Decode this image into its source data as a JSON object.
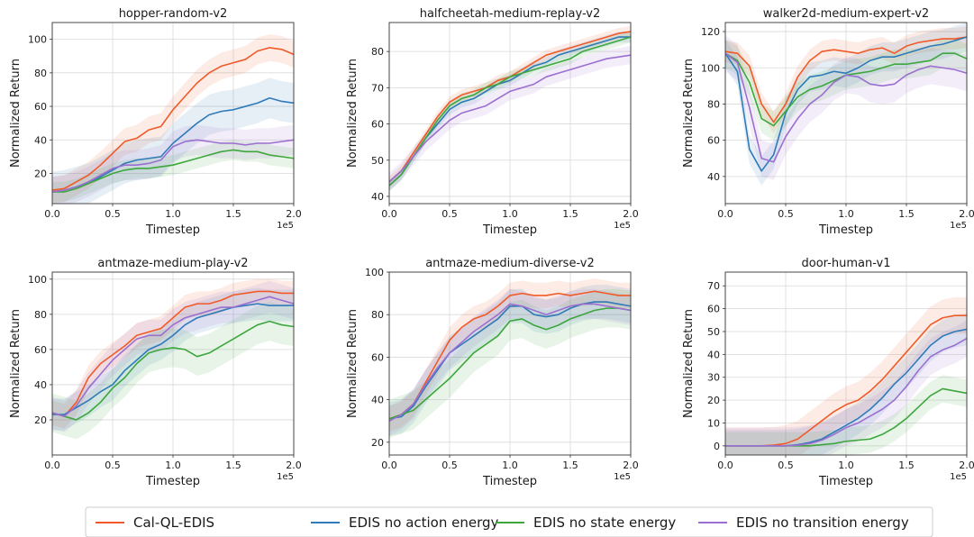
{
  "colors": {
    "Cal-QL-EDIS": "#f05a28",
    "EDIS no action energy": "#2f7ab8",
    "EDIS no state energy": "#3da63d",
    "EDIS no transition energy": "#9a6fd0"
  },
  "legend": {
    "items": [
      "Cal-QL-EDIS",
      "EDIS no action energy",
      "EDIS no state energy",
      "EDIS no transition energy"
    ]
  },
  "chart_data": [
    {
      "type": "line",
      "title": "hopper-random-v2",
      "xlabel": "Timestep",
      "ylabel": "Normalized Return",
      "x_exponent": "1e5",
      "xlim": [
        0,
        2.0
      ],
      "ylim": [
        2,
        110
      ],
      "xticks": [
        0.0,
        0.5,
        1.0,
        1.5,
        2.0
      ],
      "yticks": [
        20,
        40,
        60,
        80,
        100
      ],
      "grid": true,
      "x": [
        0.0,
        0.1,
        0.2,
        0.3,
        0.4,
        0.5,
        0.6,
        0.7,
        0.8,
        0.9,
        1.0,
        1.1,
        1.2,
        1.3,
        1.4,
        1.5,
        1.6,
        1.7,
        1.8,
        1.9,
        2.0
      ],
      "series": [
        {
          "name": "Cal-QL-EDIS",
          "values": [
            10,
            11,
            15,
            19,
            25,
            32,
            39,
            41,
            46,
            48,
            58,
            66,
            74,
            80,
            84,
            86,
            88,
            93,
            95,
            94,
            91
          ],
          "band": 8
        },
        {
          "name": "EDIS no action energy",
          "values": [
            9,
            10,
            12,
            14,
            18,
            22,
            26,
            28,
            29,
            30,
            38,
            44,
            50,
            55,
            57,
            58,
            60,
            62,
            65,
            63,
            62
          ],
          "band": 12
        },
        {
          "name": "EDIS no state energy",
          "values": [
            9,
            9,
            11,
            14,
            17,
            20,
            22,
            23,
            23,
            24,
            25,
            27,
            29,
            31,
            33,
            34,
            33,
            33,
            31,
            30,
            29
          ],
          "band": 6
        },
        {
          "name": "EDIS no transition energy",
          "values": [
            9,
            10,
            12,
            15,
            19,
            23,
            25,
            25,
            26,
            28,
            36,
            39,
            40,
            39,
            38,
            38,
            37,
            38,
            38,
            39,
            40
          ],
          "band": 9
        }
      ]
    },
    {
      "type": "line",
      "title": "halfcheetah-medium-replay-v2",
      "xlabel": "Timestep",
      "ylabel": "Normalized Return",
      "x_exponent": "1e5",
      "xlim": [
        0,
        2.0
      ],
      "ylim": [
        38,
        88
      ],
      "xticks": [
        0.0,
        0.5,
        1.0,
        1.5,
        2.0
      ],
      "yticks": [
        40,
        50,
        60,
        70,
        80
      ],
      "grid": true,
      "x": [
        0.0,
        0.1,
        0.2,
        0.3,
        0.4,
        0.5,
        0.6,
        0.7,
        0.8,
        0.9,
        1.0,
        1.1,
        1.2,
        1.3,
        1.4,
        1.5,
        1.6,
        1.7,
        1.8,
        1.9,
        2.0
      ],
      "series": [
        {
          "name": "Cal-QL-EDIS",
          "values": [
            44,
            47,
            52,
            57,
            62,
            66,
            68,
            69,
            70,
            72,
            73,
            75,
            77,
            79,
            80,
            81,
            82,
            83,
            84,
            85,
            85.5
          ],
          "band": 1.5
        },
        {
          "name": "EDIS no action energy",
          "values": [
            43,
            46,
            51,
            56,
            60,
            64,
            66,
            67,
            69,
            71,
            72,
            74,
            76,
            77,
            79,
            80,
            81,
            82,
            83,
            84,
            84
          ],
          "band": 1.5
        },
        {
          "name": "EDIS no state energy",
          "values": [
            43,
            46,
            51,
            56,
            61,
            65,
            67,
            68,
            70,
            71,
            73,
            74,
            75,
            76,
            77,
            78,
            80,
            81,
            82,
            83,
            84
          ],
          "band": 1.5
        },
        {
          "name": "EDIS no transition energy",
          "values": [
            44,
            47,
            51,
            55,
            58,
            61,
            63,
            64,
            65,
            67,
            69,
            70,
            71,
            73,
            74,
            75,
            76,
            77,
            78,
            78.5,
            79
          ],
          "band": 2.5
        }
      ]
    },
    {
      "type": "line",
      "title": "walker2d-medium-expert-v2",
      "xlabel": "Timestep",
      "ylabel": "Normalized Return",
      "x_exponent": "1e5",
      "xlim": [
        0,
        2.0
      ],
      "ylim": [
        25,
        125
      ],
      "xticks": [
        0.0,
        0.5,
        1.0,
        1.5,
        2.0
      ],
      "yticks": [
        40,
        60,
        80,
        100,
        120
      ],
      "grid": true,
      "x": [
        0.0,
        0.1,
        0.2,
        0.3,
        0.4,
        0.5,
        0.6,
        0.7,
        0.8,
        0.9,
        1.0,
        1.1,
        1.2,
        1.3,
        1.4,
        1.5,
        1.6,
        1.7,
        1.8,
        1.9,
        2.0
      ],
      "series": [
        {
          "name": "Cal-QL-EDIS",
          "values": [
            109,
            108,
            101,
            80,
            70,
            80,
            95,
            104,
            109,
            110,
            109,
            108,
            110,
            111,
            108,
            112,
            114,
            115,
            116,
            116,
            117
          ],
          "band": 6
        },
        {
          "name": "EDIS no action energy",
          "values": [
            108,
            98,
            55,
            43,
            52,
            75,
            88,
            95,
            96,
            98,
            97,
            100,
            104,
            106,
            106,
            108,
            110,
            112,
            113,
            115,
            117
          ],
          "band": 8
        },
        {
          "name": "EDIS no state energy",
          "values": [
            108,
            104,
            92,
            72,
            68,
            76,
            84,
            88,
            90,
            93,
            96,
            97,
            98,
            100,
            102,
            102,
            103,
            104,
            108,
            108,
            105
          ],
          "band": 8
        },
        {
          "name": "EDIS no transition energy",
          "values": [
            108,
            103,
            78,
            50,
            48,
            62,
            72,
            80,
            85,
            92,
            96,
            95,
            91,
            90,
            91,
            96,
            99,
            101,
            100,
            99,
            97
          ],
          "band": 10
        }
      ]
    },
    {
      "type": "line",
      "title": "antmaze-medium-play-v2",
      "xlabel": "Timestep",
      "ylabel": "Normalized Return",
      "x_exponent": "1e5",
      "xlim": [
        0,
        2.0
      ],
      "ylim": [
        0,
        104
      ],
      "xticks": [
        0.0,
        0.5,
        1.0,
        1.5,
        2.0
      ],
      "yticks": [
        20,
        40,
        60,
        80,
        100
      ],
      "grid": true,
      "x": [
        0.0,
        0.1,
        0.2,
        0.3,
        0.4,
        0.5,
        0.6,
        0.7,
        0.8,
        0.9,
        1.0,
        1.1,
        1.2,
        1.3,
        1.4,
        1.5,
        1.6,
        1.7,
        1.8,
        1.9,
        2.0
      ],
      "series": [
        {
          "name": "Cal-QL-EDIS",
          "values": [
            24,
            22,
            30,
            44,
            52,
            57,
            62,
            68,
            70,
            72,
            78,
            84,
            86,
            86,
            88,
            91,
            92,
            93,
            93,
            92,
            92
          ],
          "band": 7
        },
        {
          "name": "EDIS no action energy",
          "values": [
            23,
            23,
            27,
            31,
            36,
            40,
            48,
            54,
            60,
            63,
            68,
            74,
            78,
            80,
            82,
            84,
            85,
            86,
            85,
            85,
            85
          ],
          "band": 9
        },
        {
          "name": "EDIS no state energy",
          "values": [
            24,
            22,
            20,
            24,
            30,
            38,
            44,
            52,
            58,
            60,
            61,
            60,
            56,
            58,
            62,
            66,
            70,
            74,
            76,
            74,
            73
          ],
          "band": 11
        },
        {
          "name": "EDIS no transition energy",
          "values": [
            24,
            22,
            28,
            38,
            46,
            54,
            60,
            66,
            68,
            68,
            74,
            78,
            80,
            82,
            84,
            84,
            86,
            88,
            90,
            88,
            86
          ],
          "band": 9
        }
      ]
    },
    {
      "type": "line",
      "title": "antmaze-medium-diverse-v2",
      "xlabel": "Timestep",
      "ylabel": "Normalized Return",
      "x_exponent": "1e5",
      "xlim": [
        0,
        2.0
      ],
      "ylim": [
        14,
        100
      ],
      "xticks": [
        0.0,
        0.5,
        1.0,
        1.5,
        2.0
      ],
      "yticks": [
        20,
        40,
        60,
        80,
        100
      ],
      "grid": true,
      "x": [
        0.0,
        0.1,
        0.2,
        0.3,
        0.4,
        0.5,
        0.6,
        0.7,
        0.8,
        0.9,
        1.0,
        1.1,
        1.2,
        1.3,
        1.4,
        1.5,
        1.6,
        1.7,
        1.8,
        1.9,
        2.0
      ],
      "series": [
        {
          "name": "Cal-QL-EDIS",
          "values": [
            31,
            33,
            38,
            48,
            58,
            68,
            74,
            78,
            80,
            84,
            89,
            90,
            89,
            89,
            90,
            89,
            90,
            91,
            90,
            89,
            89
          ],
          "band": 6
        },
        {
          "name": "EDIS no action energy",
          "values": [
            31,
            32,
            37,
            46,
            54,
            62,
            66,
            70,
            74,
            78,
            84,
            84,
            80,
            79,
            80,
            83,
            85,
            86,
            86,
            85,
            84
          ],
          "band": 8
        },
        {
          "name": "EDIS no state energy",
          "values": [
            31,
            33,
            35,
            40,
            45,
            50,
            56,
            62,
            66,
            70,
            77,
            78,
            75,
            73,
            75,
            78,
            80,
            82,
            83,
            83,
            82
          ],
          "band": 9
        },
        {
          "name": "EDIS no transition energy",
          "values": [
            30,
            33,
            38,
            47,
            55,
            62,
            67,
            72,
            76,
            80,
            85,
            84,
            82,
            80,
            82,
            84,
            85,
            85,
            84,
            83,
            82
          ],
          "band": 7
        }
      ]
    },
    {
      "type": "line",
      "title": "door-human-v1",
      "xlabel": "Timestep",
      "ylabel": "Normalized Return",
      "x_exponent": "1e5",
      "xlim": [
        0,
        2.0
      ],
      "ylim": [
        -4,
        76
      ],
      "xticks": [
        0.0,
        0.5,
        1.0,
        1.5,
        2.0
      ],
      "yticks": [
        0,
        10,
        20,
        30,
        40,
        50,
        60,
        70
      ],
      "grid": true,
      "x": [
        0.0,
        0.1,
        0.2,
        0.3,
        0.4,
        0.5,
        0.6,
        0.7,
        0.8,
        0.9,
        1.0,
        1.1,
        1.2,
        1.3,
        1.4,
        1.5,
        1.6,
        1.7,
        1.8,
        1.9,
        2.0
      ],
      "series": [
        {
          "name": "Cal-QL-EDIS",
          "values": [
            0,
            0,
            0,
            0,
            0.3,
            1,
            3,
            7,
            11,
            15,
            18,
            20,
            24,
            29,
            35,
            41,
            47,
            53,
            56,
            57,
            57
          ],
          "band": 8
        },
        {
          "name": "EDIS no action energy",
          "values": [
            0,
            0,
            0,
            0,
            0,
            0,
            0.5,
            1.5,
            3,
            6,
            9,
            12,
            16,
            21,
            27,
            32,
            38,
            44,
            48,
            50,
            51
          ],
          "band": 7
        },
        {
          "name": "EDIS no state energy",
          "values": [
            0,
            0,
            0,
            0,
            0,
            0,
            0,
            0,
            0.5,
            1,
            2,
            2.5,
            3,
            5,
            8,
            12,
            17,
            22,
            25,
            24,
            23
          ],
          "band": 6
        },
        {
          "name": "EDIS no transition energy",
          "values": [
            0,
            0,
            0,
            0,
            0,
            0,
            0.3,
            1,
            2.5,
            5,
            8,
            10,
            13,
            16,
            20,
            26,
            33,
            39,
            42,
            44,
            47
          ],
          "band": 8
        }
      ]
    }
  ]
}
